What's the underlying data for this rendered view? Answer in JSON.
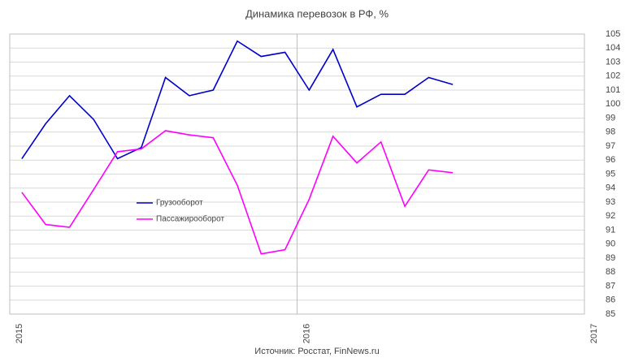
{
  "chart_data": {
    "type": "line",
    "title": "Динамика перевозок в РФ, %",
    "source": "Источник: Росстат, FinNews.ru",
    "x": [
      2015.042,
      2015.125,
      2015.208,
      2015.292,
      2015.375,
      2015.458,
      2015.542,
      2015.625,
      2015.708,
      2015.792,
      2015.875,
      2015.958,
      2016.042,
      2016.125,
      2016.208,
      2016.292,
      2016.375,
      2016.458,
      2016.542
    ],
    "series": [
      {
        "name": "Грузооборот",
        "color": "#0000cc",
        "values": [
          96.1,
          98.6,
          100.6,
          98.9,
          96.1,
          96.9,
          101.9,
          100.6,
          101.0,
          104.5,
          103.4,
          103.7,
          101.0,
          103.9,
          99.8,
          100.7,
          100.7,
          101.9,
          101.4
        ]
      },
      {
        "name": "Пассажирооборот",
        "color": "#ff00ff",
        "values": [
          93.7,
          91.4,
          91.2,
          93.9,
          96.6,
          96.8,
          98.1,
          97.8,
          97.6,
          94.2,
          89.3,
          89.6,
          93.2,
          97.7,
          95.8,
          97.3,
          92.7,
          95.3,
          95.1
        ]
      }
    ],
    "xlim": [
      2015,
      2017
    ],
    "xticks": [
      2015,
      2016,
      2017
    ],
    "ylim": [
      85,
      105
    ],
    "yticks": [
      85,
      86,
      87,
      88,
      89,
      90,
      91,
      92,
      93,
      94,
      95,
      96,
      97,
      98,
      99,
      100,
      101,
      102,
      103,
      104,
      105
    ],
    "grid": true,
    "legend": "center-left"
  }
}
